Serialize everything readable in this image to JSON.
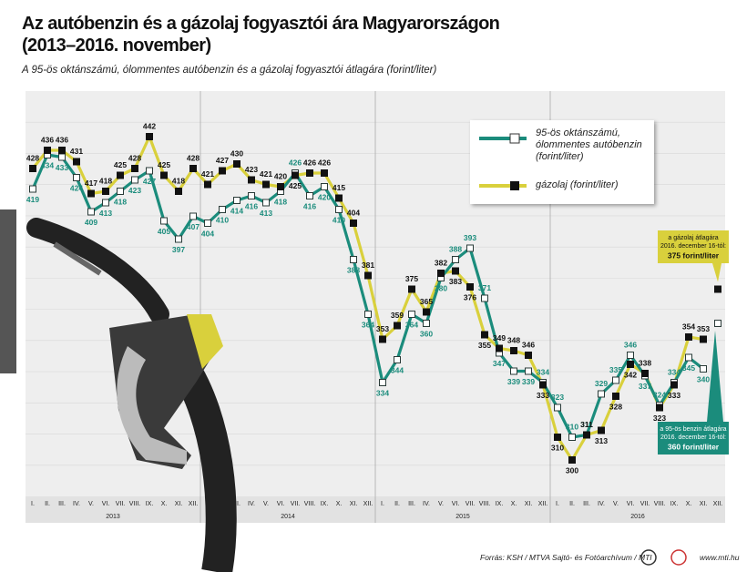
{
  "chart_data": {
    "type": "line",
    "title": "Az autóbenzin és a gázolaj fogyasztói ára Magyarországon",
    "title_line2": "(2013–2016. november)",
    "subtitle": "A 95-ös oktánszámú, ólommentes autóbenzin és a gázolaj fogyasztói átlagára (forint/liter)",
    "categories": [
      "I.",
      "II.",
      "III.",
      "IV.",
      "V.",
      "VI.",
      "VII.",
      "VIII.",
      "IX.",
      "X.",
      "XI.",
      "XII.",
      "I.",
      "II.",
      "III.",
      "IV.",
      "V.",
      "VI.",
      "VII.",
      "VIII.",
      "IX.",
      "X.",
      "XI.",
      "XII.",
      "I.",
      "II.",
      "III.",
      "IV.",
      "V.",
      "VI.",
      "VII.",
      "VIII.",
      "IX.",
      "X.",
      "XI.",
      "XII.",
      "I.",
      "II.",
      "III.",
      "IV.",
      "V.",
      "VI.",
      "VII.",
      "VIII.",
      "IX.",
      "X.",
      "XI.",
      "XII."
    ],
    "year_groups": [
      "2013",
      "2014",
      "2015",
      "2016"
    ],
    "ylim": [
      284,
      462
    ],
    "series": [
      {
        "name": "95-ös oktánszámú, ólommentes autóbenzin (forint/liter)",
        "color": "#1b8c7c",
        "values": [
          419,
          434,
          433,
          424,
          409,
          413,
          418,
          423,
          427,
          405,
          397,
          407,
          404,
          410,
          414,
          416,
          413,
          418,
          426,
          416,
          420,
          410,
          388,
          364,
          334,
          344,
          364,
          360,
          380,
          388,
          393,
          371,
          347,
          339,
          339,
          334,
          323,
          310,
          311,
          329,
          335,
          346,
          337,
          324,
          334,
          345,
          340,
          null
        ]
      },
      {
        "name": "gázolaj (forint/liter)",
        "color": "#d9d03c",
        "values": [
          428,
          436,
          436,
          431,
          417,
          418,
          425,
          428,
          442,
          425,
          418,
          428,
          421,
          427,
          430,
          423,
          421,
          420,
          425,
          426,
          426,
          415,
          404,
          381,
          353,
          359,
          375,
          365,
          382,
          383,
          376,
          355,
          349,
          348,
          346,
          333,
          310,
          300,
          311,
          313,
          328,
          342,
          338,
          323,
          333,
          354,
          353,
          null
        ]
      }
    ],
    "annotations": [
      {
        "lines": [
          "a 95-ös benzin átlagára",
          "2016. december 16-tól:"
        ],
        "value": 360,
        "value_label": "360 forint/liter"
      },
      {
        "lines": [
          "a gázolaj átlagára",
          "2016. december 16-tól:"
        ],
        "value": 375,
        "value_label": "375 forint/liter"
      }
    ],
    "source": "Forrás: KSH / MTVA Sajtó- és Fotóarchívum / MTI",
    "website": "www.mti.hu"
  }
}
